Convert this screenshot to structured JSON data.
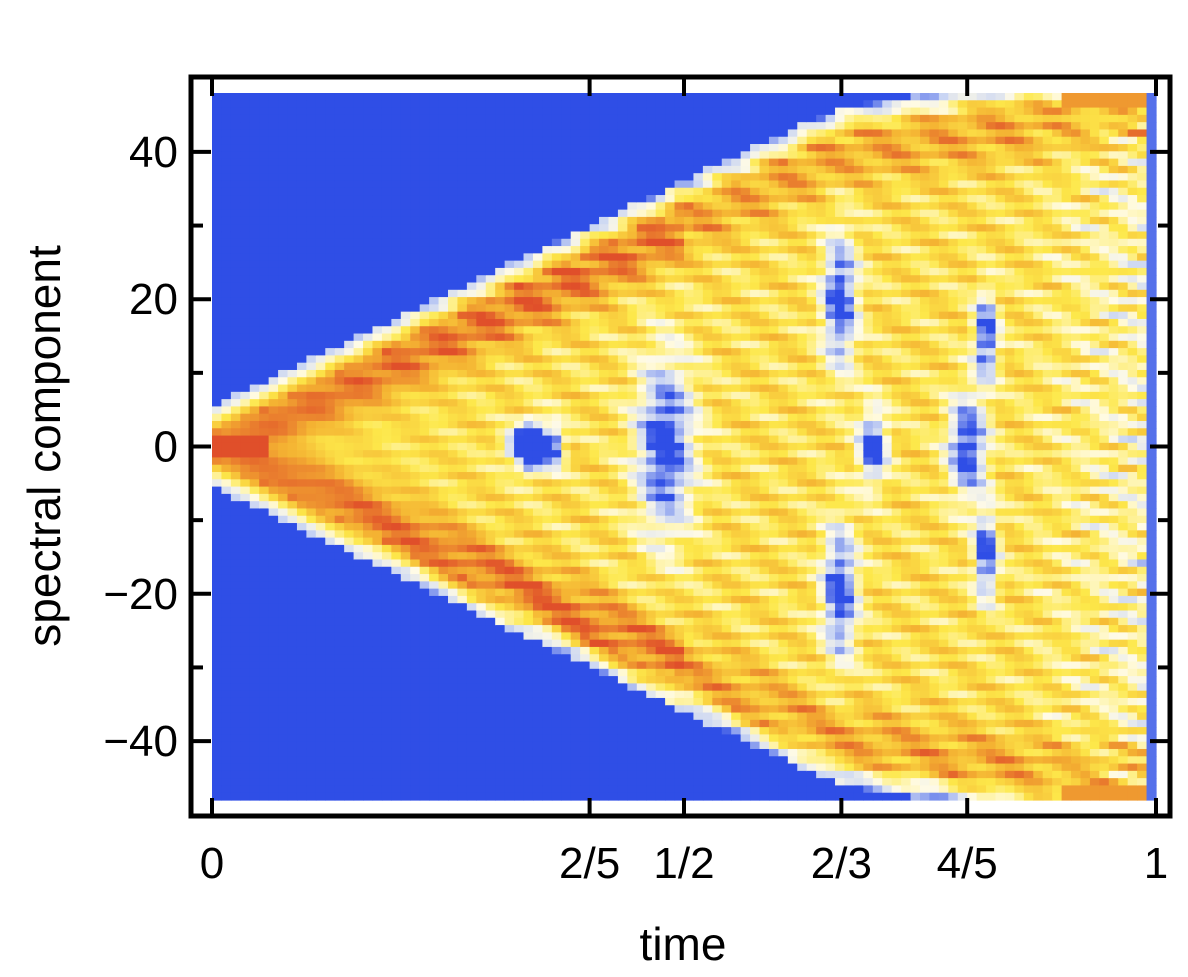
{
  "chart_data": {
    "type": "heatmap",
    "title": "",
    "xlabel": "time",
    "ylabel": "spectral component",
    "xlim": [
      0,
      1
    ],
    "ylim": [
      -48,
      48
    ],
    "x_ticks": [
      {
        "value": 0,
        "label": "0"
      },
      {
        "value": 0.4,
        "label": "2/5"
      },
      {
        "value": 0.5,
        "label": "1/2"
      },
      {
        "value": 0.6667,
        "label": "2/3"
      },
      {
        "value": 0.8,
        "label": "4/5"
      },
      {
        "value": 1,
        "label": "1"
      }
    ],
    "y_ticks": [
      {
        "value": 40,
        "label": "40"
      },
      {
        "value": 20,
        "label": "20"
      },
      {
        "value": 0,
        "label": "0"
      },
      {
        "value": -20,
        "label": "−20"
      },
      {
        "value": -40,
        "label": "−40"
      }
    ],
    "grid": false,
    "legend": "none",
    "colormap": [
      "#2f4ee6",
      "#c8d4f4",
      "#fffbe6",
      "#fde84a",
      "#f4b232",
      "#e04f2a"
    ],
    "background_color": "#2f4ee6"
  }
}
